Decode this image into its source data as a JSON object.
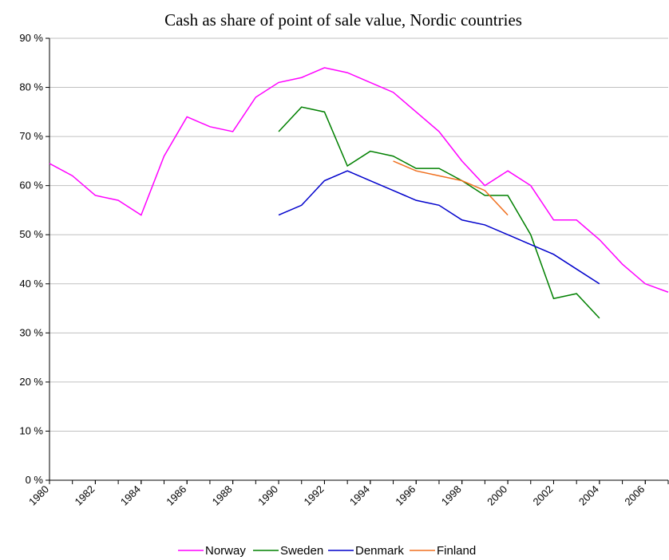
{
  "chart_data": {
    "type": "line",
    "title": "Cash as share of point of sale value, Nordic countries",
    "x": [
      1980,
      1981,
      1982,
      1983,
      1984,
      1985,
      1986,
      1987,
      1988,
      1989,
      1990,
      1991,
      1992,
      1993,
      1994,
      1995,
      1996,
      1997,
      1998,
      1999,
      2000,
      2001,
      2002,
      2003,
      2004,
      2005,
      2006,
      2007
    ],
    "series": [
      {
        "name": "Norway",
        "color": "#ff00ff",
        "values": [
          64.5,
          62,
          58,
          57,
          54,
          66,
          74,
          72,
          71,
          78,
          81,
          82,
          84,
          83,
          81,
          79,
          75,
          71,
          65,
          60,
          63,
          60,
          53,
          53,
          49,
          44,
          40,
          38.3
        ]
      },
      {
        "name": "Sweden",
        "color": "#008000",
        "values": [
          null,
          null,
          null,
          null,
          null,
          null,
          null,
          null,
          null,
          null,
          71,
          76,
          75,
          64,
          67,
          66,
          63.5,
          63.5,
          61,
          58,
          58,
          50,
          37,
          38,
          33,
          null,
          null,
          null
        ]
      },
      {
        "name": "Denmark",
        "color": "#0000cc",
        "values": [
          null,
          null,
          null,
          null,
          null,
          null,
          null,
          null,
          null,
          null,
          54,
          56,
          61,
          63,
          61,
          59,
          57,
          56,
          53,
          52,
          50,
          48,
          46,
          43,
          40,
          null,
          null,
          null
        ]
      },
      {
        "name": "Finland",
        "color": "#f07020",
        "values": [
          null,
          null,
          null,
          null,
          null,
          null,
          null,
          null,
          null,
          null,
          null,
          null,
          null,
          null,
          null,
          65,
          63,
          62,
          61,
          59,
          54,
          null,
          null,
          null,
          null,
          null,
          null,
          null
        ]
      }
    ],
    "xlim": [
      1980,
      2007
    ],
    "xticks": [
      1980,
      1982,
      1984,
      1986,
      1988,
      1990,
      1992,
      1994,
      1996,
      1998,
      2000,
      2002,
      2004,
      2006
    ],
    "ylim": [
      0,
      90
    ],
    "yticks": [
      {
        "value": 0,
        "label": "0 %"
      },
      {
        "value": 10,
        "label": "10 %"
      },
      {
        "value": 20,
        "label": "20 %"
      },
      {
        "value": 30,
        "label": "30 %"
      },
      {
        "value": 40,
        "label": "40 %"
      },
      {
        "value": 50,
        "label": "50 %"
      },
      {
        "value": 60,
        "label": "60 %"
      },
      {
        "value": 70,
        "label": "70 %"
      },
      {
        "value": 80,
        "label": "80 %"
      },
      {
        "value": 90,
        "label": "90 %"
      }
    ],
    "grid": true,
    "legend": "bottom"
  }
}
